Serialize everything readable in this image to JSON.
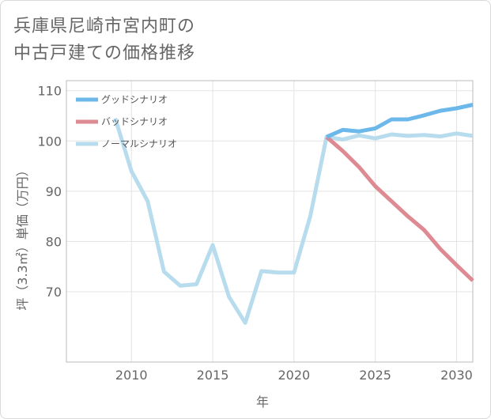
{
  "title_lines": [
    "兵庫県尼崎市宮内町の",
    "中古戸建ての価格推移"
  ],
  "chart_data": {
    "type": "line",
    "xlabel": "年",
    "ylabel": "坪（3.3㎡）単価（万円）",
    "xlim": [
      2006,
      2031
    ],
    "ylim": [
      56,
      112
    ],
    "xticks": [
      2010,
      2015,
      2020,
      2025,
      2030
    ],
    "yticks": [
      70,
      80,
      90,
      100,
      110
    ],
    "grid": true,
    "legend_position": "top-left",
    "series": [
      {
        "name": "グッドシナリオ",
        "color": "#6cb8ea",
        "x": [
          2022,
          2023,
          2024,
          2025,
          2026,
          2027,
          2028,
          2029,
          2030,
          2031
        ],
        "values": [
          100.8,
          102.2,
          101.9,
          102.5,
          104.3,
          104.3,
          105.1,
          106.0,
          106.5,
          107.2
        ]
      },
      {
        "name": "バッドシナリオ",
        "color": "#de8a92",
        "x": [
          2022,
          2023,
          2024,
          2025,
          2026,
          2027,
          2028,
          2029,
          2030,
          2031
        ],
        "values": [
          100.8,
          98.0,
          94.8,
          91.0,
          88.0,
          85.0,
          82.3,
          78.5,
          75.3,
          72.2
        ]
      },
      {
        "name": "ノーマルシナリオ",
        "color": "#b7dcee",
        "x": [
          2009,
          2010,
          2011,
          2012,
          2013,
          2014,
          2015,
          2016,
          2017,
          2018,
          2019,
          2020,
          2021,
          2022,
          2023,
          2024,
          2025,
          2026,
          2027,
          2028,
          2029,
          2030,
          2031
        ],
        "values": [
          104.5,
          94.0,
          88.0,
          74.0,
          71.2,
          71.5,
          79.3,
          69.0,
          63.8,
          74.1,
          73.8,
          73.8,
          85.0,
          100.8,
          100.3,
          101.1,
          100.5,
          101.3,
          101.0,
          101.2,
          100.9,
          101.5,
          101.0
        ]
      }
    ]
  }
}
